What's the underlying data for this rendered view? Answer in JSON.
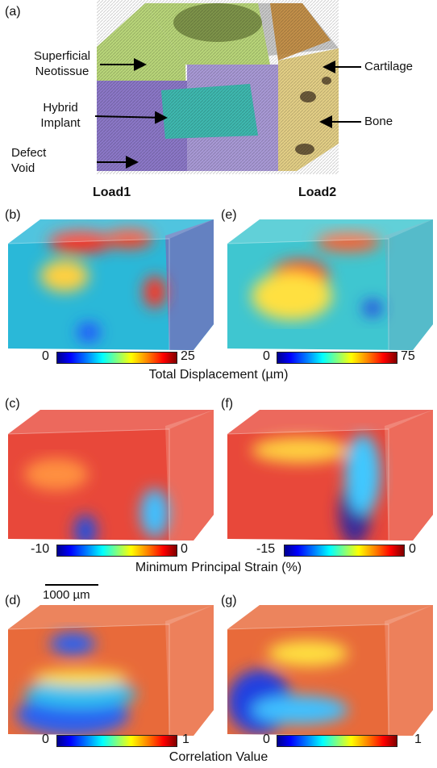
{
  "panels": {
    "a": {
      "label": "(a)",
      "annotations": {
        "superficial_line1": "Superficial",
        "superficial_line2": "Neotissue",
        "hybrid_line1": "Hybrid",
        "hybrid_line2": "Implant",
        "defect_line1": "Defect",
        "defect_line2": "Void",
        "cartilage": "Cartilage",
        "bone": "Bone"
      },
      "region_colors": {
        "neotissue": "#b9d67a",
        "implant": "#3fb9b0",
        "void": "#8c78c8",
        "bone": "#e3cf86",
        "cartilage": "#c28a3c"
      }
    },
    "b": {
      "label": "(b)"
    },
    "c": {
      "label": "(c)"
    },
    "d": {
      "label": "(d)"
    },
    "e": {
      "label": "(e)"
    },
    "f": {
      "label": "(f)"
    },
    "g": {
      "label": "(g)"
    }
  },
  "columns": {
    "load1": "Load1",
    "load2": "Load2"
  },
  "colorbars": {
    "displacement": {
      "title": "Total Displacement (µm)",
      "load1_min": "0",
      "load1_max": "25",
      "load2_min": "0",
      "load2_max": "75"
    },
    "strain": {
      "title": "Minimum Principal Strain (%)",
      "load1_min": "-10",
      "load1_max": "0",
      "load2_min": "-15",
      "load2_max": "0"
    },
    "correlation": {
      "title": "Correlation Value",
      "load1_min": "0",
      "load1_max": "1",
      "load2_min": "0",
      "load2_max": "1"
    }
  },
  "scale_bar": {
    "label": "1000 µm"
  },
  "colormap": "jet"
}
